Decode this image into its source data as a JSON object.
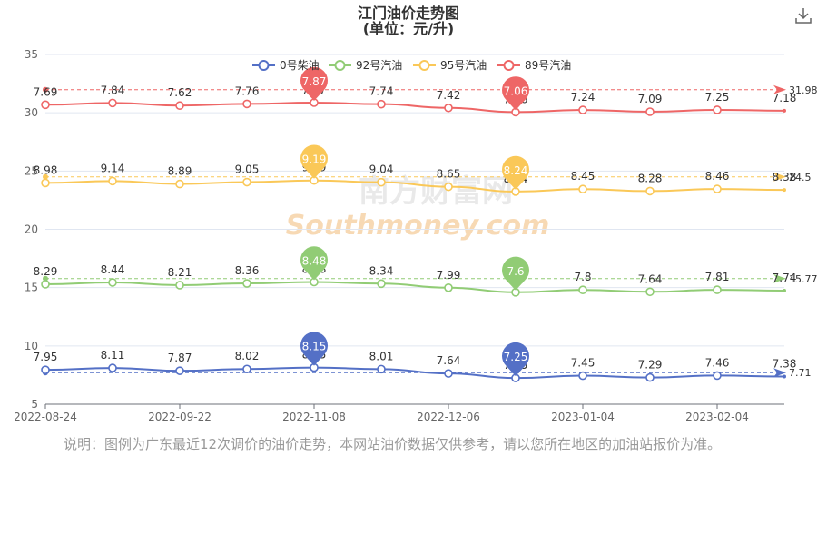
{
  "title_line1": "江门油价走势图",
  "title_line2": "(单位：元/升)",
  "note": "说明：图例为广东最近12次调价的油价走势，本网站油价数据仅供参考，请以您所在地区的加油站报价为准。",
  "watermark": {
    "cn": "南方财富网",
    "en": "Southmoney.com"
  },
  "chart_data": {
    "type": "line",
    "y_ticks": [
      "35",
      "30",
      "25",
      "20",
      "15",
      "10",
      "5"
    ],
    "ylim": [
      5,
      35
    ],
    "x_tick_labels": [
      "2022-08-24",
      "2022-09-22",
      "2022-11-08",
      "2022-12-06",
      "2023-01-04",
      "2023-02-04"
    ],
    "point_count": 12,
    "grid": true,
    "legend_position": "top",
    "series": [
      {
        "name": "0号柴油",
        "color": "#5470c6",
        "values": [
          7.95,
          8.11,
          7.87,
          8.02,
          8.15,
          8.01,
          7.64,
          7.25,
          7.45,
          7.29,
          7.46,
          7.38
        ],
        "labels": [
          "7.95",
          "8.11",
          "7.87",
          "8.02",
          "8.15",
          "8.01",
          "7.64",
          "7.25",
          "7.45",
          "7.29",
          "7.46",
          "7.38"
        ],
        "max_pin": "8.15",
        "min_pin": "7.25",
        "average": "7.71",
        "offset": 0
      },
      {
        "name": "92号汽油",
        "color": "#91cc75",
        "values": [
          8.29,
          8.44,
          8.21,
          8.36,
          8.48,
          8.34,
          7.99,
          7.6,
          7.8,
          7.64,
          7.81,
          7.74
        ],
        "labels": [
          "8.29",
          "8.44",
          "8.21",
          "8.36",
          "8.48",
          "8.34",
          "7.99",
          "7.6",
          "7.8",
          "7.64",
          "7.81",
          "7.74"
        ],
        "max_pin": "8.48",
        "min_pin": "7.6",
        "average": "15.77",
        "offset": 7
      },
      {
        "name": "95号汽油",
        "color": "#fac858",
        "values": [
          8.98,
          9.14,
          8.89,
          9.05,
          9.19,
          9.04,
          8.65,
          8.24,
          8.45,
          8.28,
          8.46,
          8.38
        ],
        "labels": [
          "8.98",
          "9.14",
          "8.89",
          "9.05",
          "9.19",
          "9.04",
          "8.65",
          "8.24",
          "8.45",
          "8.28",
          "8.46",
          "8.38"
        ],
        "max_pin": "9.19",
        "min_pin": "8.24",
        "average": "24.5",
        "offset": 15
      },
      {
        "name": "89号汽油",
        "color": "#ee6666",
        "values": [
          7.69,
          7.84,
          7.62,
          7.76,
          7.87,
          7.74,
          7.42,
          7.06,
          7.24,
          7.09,
          7.25,
          7.18
        ],
        "labels": [
          "7.69",
          "7.84",
          "7.62",
          "7.76",
          "7.87",
          "7.74",
          "7.42",
          "7.06",
          "7.24",
          "7.09",
          "7.25",
          "7.18"
        ],
        "max_pin": "7.87",
        "min_pin": "7.06",
        "average": "31.98",
        "offset": 23
      }
    ]
  }
}
